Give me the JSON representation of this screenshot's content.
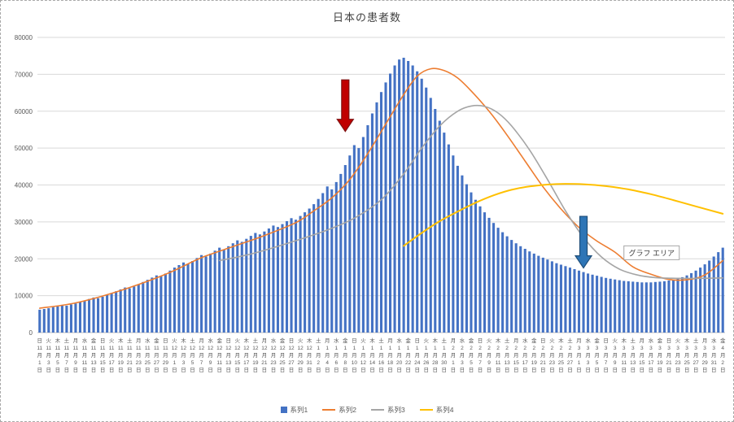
{
  "chart": {
    "title": "日本の患者数",
    "tooltip": "グラフ エリア",
    "legend": [
      {
        "label": "系列1",
        "color": "#4472C4",
        "type": "bar"
      },
      {
        "label": "系列2",
        "color": "#ED7D31",
        "type": "line"
      },
      {
        "label": "系列3",
        "color": "#A5A5A5",
        "type": "line"
      },
      {
        "label": "系列4",
        "color": "#FFC000",
        "type": "line"
      }
    ]
  },
  "chart_data": {
    "type": "combo",
    "title": "日本の患者数",
    "y_axis": {
      "min": 0,
      "max": 80000,
      "step": 10000,
      "tick_labels": [
        "0",
        "10000",
        "20000",
        "30000",
        "40000",
        "50000",
        "60000",
        "70000",
        "80000"
      ],
      "grid": true
    },
    "x_axis": {
      "unit": "day",
      "label_every_days": 2,
      "start": "11月1日(日)",
      "end": "4月2日(金)",
      "total_days": 153,
      "tick_labels": [
        [
          "日",
          11,
          1
        ],
        [
          "火",
          11,
          3
        ],
        [
          "木",
          11,
          5
        ],
        [
          "土",
          11,
          7
        ],
        [
          "月",
          11,
          9
        ],
        [
          "水",
          11,
          11
        ],
        [
          "金",
          11,
          13
        ],
        [
          "日",
          11,
          15
        ],
        [
          "火",
          11,
          17
        ],
        [
          "木",
          11,
          19
        ],
        [
          "土",
          11,
          21
        ],
        [
          "月",
          11,
          23
        ],
        [
          "水",
          11,
          25
        ],
        [
          "金",
          11,
          27
        ],
        [
          "日",
          11,
          29
        ],
        [
          "火",
          12,
          1
        ],
        [
          "木",
          12,
          3
        ],
        [
          "土",
          12,
          5
        ],
        [
          "月",
          12,
          7
        ],
        [
          "水",
          12,
          9
        ],
        [
          "金",
          12,
          11
        ],
        [
          "日",
          12,
          13
        ],
        [
          "火",
          12,
          15
        ],
        [
          "木",
          12,
          17
        ],
        [
          "土",
          12,
          19
        ],
        [
          "月",
          12,
          21
        ],
        [
          "水",
          12,
          23
        ],
        [
          "金",
          12,
          25
        ],
        [
          "日",
          12,
          27
        ],
        [
          "火",
          12,
          29
        ],
        [
          "木",
          12,
          31
        ],
        [
          "土",
          1,
          2
        ],
        [
          "月",
          1,
          4
        ],
        [
          "水",
          1,
          6
        ],
        [
          "金",
          1,
          8
        ],
        [
          "日",
          1,
          10
        ],
        [
          "火",
          1,
          12
        ],
        [
          "木",
          1,
          14
        ],
        [
          "土",
          1,
          16
        ],
        [
          "月",
          1,
          18
        ],
        [
          "水",
          1,
          20
        ],
        [
          "金",
          1,
          22
        ],
        [
          "日",
          1,
          24
        ],
        [
          "火",
          1,
          26
        ],
        [
          "木",
          1,
          28
        ],
        [
          "土",
          1,
          30
        ],
        [
          "月",
          2,
          1
        ],
        [
          "水",
          2,
          3
        ],
        [
          "金",
          2,
          5
        ],
        [
          "日",
          2,
          7
        ],
        [
          "火",
          2,
          9
        ],
        [
          "木",
          2,
          11
        ],
        [
          "土",
          2,
          13
        ],
        [
          "月",
          2,
          15
        ],
        [
          "水",
          2,
          17
        ],
        [
          "金",
          2,
          19
        ],
        [
          "日",
          2,
          21
        ],
        [
          "火",
          2,
          23
        ],
        [
          "木",
          2,
          25
        ],
        [
          "土",
          2,
          27
        ],
        [
          "月",
          3,
          1
        ],
        [
          "水",
          3,
          3
        ],
        [
          "金",
          3,
          5
        ],
        [
          "日",
          3,
          7
        ],
        [
          "火",
          3,
          9
        ],
        [
          "木",
          3,
          11
        ],
        [
          "土",
          3,
          13
        ],
        [
          "月",
          3,
          15
        ],
        [
          "水",
          3,
          17
        ],
        [
          "金",
          3,
          19
        ],
        [
          "日",
          3,
          21
        ],
        [
          "火",
          3,
          23
        ],
        [
          "木",
          3,
          25
        ],
        [
          "土",
          3,
          27
        ],
        [
          "月",
          3,
          29
        ],
        [
          "水",
          3,
          31
        ],
        [
          "金",
          4,
          2
        ]
      ]
    },
    "series": [
      {
        "name": "系列1",
        "type": "bar",
        "color": "#4472C4",
        "values": [
          6200,
          6400,
          6600,
          6900,
          7100,
          7400,
          7300,
          7600,
          7900,
          8300,
          8700,
          9100,
          9500,
          9300,
          9700,
          10200,
          10700,
          11200,
          11700,
          12200,
          12000,
          12500,
          13100,
          13700,
          14300,
          14900,
          15500,
          15200,
          16000,
          16800,
          17600,
          18300,
          19000,
          18600,
          19400,
          20200,
          21000,
          20600,
          21400,
          22200,
          23000,
          22600,
          23400,
          24200,
          25000,
          24600,
          25400,
          26200,
          27000,
          26600,
          27400,
          28200,
          29000,
          28600,
          29400,
          30200,
          31000,
          30600,
          31600,
          32600,
          33600,
          34800,
          36200,
          37800,
          39600,
          38800,
          40800,
          43000,
          45400,
          48000,
          50800,
          50000,
          53000,
          56200,
          59400,
          62400,
          65200,
          67800,
          70200,
          72400,
          74000,
          74500,
          73600,
          72400,
          70800,
          68800,
          66400,
          63600,
          60600,
          57400,
          54200,
          51000,
          48000,
          45200,
          42600,
          40200,
          38000,
          36000,
          34200,
          32600,
          31100,
          29700,
          28400,
          27200,
          26100,
          25100,
          24200,
          23400,
          22700,
          22000,
          21400,
          20800,
          20300,
          19800,
          19300,
          18800,
          18400,
          18000,
          17600,
          17200,
          16800,
          16400,
          16000,
          15700,
          15400,
          15100,
          14800,
          14600,
          14400,
          14200,
          14000,
          13900,
          13800,
          13700,
          13600,
          13600,
          13600,
          13700,
          13800,
          13900,
          14100,
          14300,
          14600,
          15000,
          15500,
          16100,
          16800,
          17600,
          18500,
          19500,
          20600,
          21800,
          23000
        ]
      },
      {
        "name": "系列2",
        "type": "line",
        "color": "#ED7D31",
        "points": [
          [
            0,
            6600
          ],
          [
            7,
            7800
          ],
          [
            14,
            9900
          ],
          [
            21,
            12600
          ],
          [
            29,
            16300
          ],
          [
            36,
            20300
          ],
          [
            43,
            23300
          ],
          [
            50,
            26300
          ],
          [
            57,
            29800
          ],
          [
            61,
            33000
          ],
          [
            65,
            36500
          ],
          [
            69,
            41500
          ],
          [
            73,
            48500
          ],
          [
            77,
            56500
          ],
          [
            81,
            64500
          ],
          [
            84,
            69500
          ],
          [
            87,
            71500
          ],
          [
            90,
            71000
          ],
          [
            93,
            69000
          ],
          [
            96,
            65500
          ],
          [
            100,
            60000
          ],
          [
            104,
            53500
          ],
          [
            108,
            46500
          ],
          [
            112,
            39500
          ],
          [
            116,
            33500
          ],
          [
            120,
            28500
          ],
          [
            124,
            24800
          ],
          [
            128,
            21800
          ],
          [
            132,
            17800
          ],
          [
            136,
            15800
          ],
          [
            140,
            14400
          ],
          [
            144,
            14300
          ],
          [
            148,
            15600
          ],
          [
            152,
            19500
          ]
        ]
      },
      {
        "name": "系列3",
        "type": "line",
        "color": "#A5A5A5",
        "points": [
          [
            40,
            19500
          ],
          [
            46,
            21000
          ],
          [
            52,
            23000
          ],
          [
            58,
            25300
          ],
          [
            64,
            27800
          ],
          [
            70,
            31000
          ],
          [
            76,
            36000
          ],
          [
            81,
            43000
          ],
          [
            85,
            50000
          ],
          [
            89,
            56000
          ],
          [
            93,
            60000
          ],
          [
            96,
            61400
          ],
          [
            99,
            61300
          ],
          [
            102,
            59500
          ],
          [
            105,
            56000
          ],
          [
            109,
            49500
          ],
          [
            113,
            41500
          ],
          [
            117,
            33000
          ],
          [
            121,
            25800
          ],
          [
            125,
            20500
          ],
          [
            129,
            17200
          ],
          [
            133,
            15600
          ],
          [
            137,
            14900
          ],
          [
            142,
            14700
          ],
          [
            147,
            14700
          ],
          [
            152,
            14800
          ]
        ]
      },
      {
        "name": "系列4",
        "type": "line",
        "color": "#FFC000",
        "points": [
          [
            81,
            23500
          ],
          [
            85,
            27000
          ],
          [
            89,
            30200
          ],
          [
            93,
            32800
          ],
          [
            97,
            35200
          ],
          [
            101,
            37200
          ],
          [
            105,
            38700
          ],
          [
            109,
            39600
          ],
          [
            113,
            40100
          ],
          [
            117,
            40300
          ],
          [
            121,
            40200
          ],
          [
            126,
            39700
          ],
          [
            131,
            38800
          ],
          [
            136,
            37500
          ],
          [
            141,
            35900
          ],
          [
            146,
            34200
          ],
          [
            152,
            32200
          ]
        ]
      }
    ],
    "annotations": {
      "arrows": [
        {
          "name": "red-down-arrow",
          "fill": "#C00000",
          "outline": "#7F1212",
          "day": 68,
          "from_value": 68500,
          "to_value": 54500
        },
        {
          "name": "blue-down-arrow",
          "fill": "#2E75B6",
          "outline": "#1F4E79",
          "day": 121,
          "from_value": 31500,
          "to_value": 17500
        }
      ],
      "tooltip": {
        "text": "グラフ エリア",
        "day": 130,
        "value": 23500
      }
    }
  }
}
